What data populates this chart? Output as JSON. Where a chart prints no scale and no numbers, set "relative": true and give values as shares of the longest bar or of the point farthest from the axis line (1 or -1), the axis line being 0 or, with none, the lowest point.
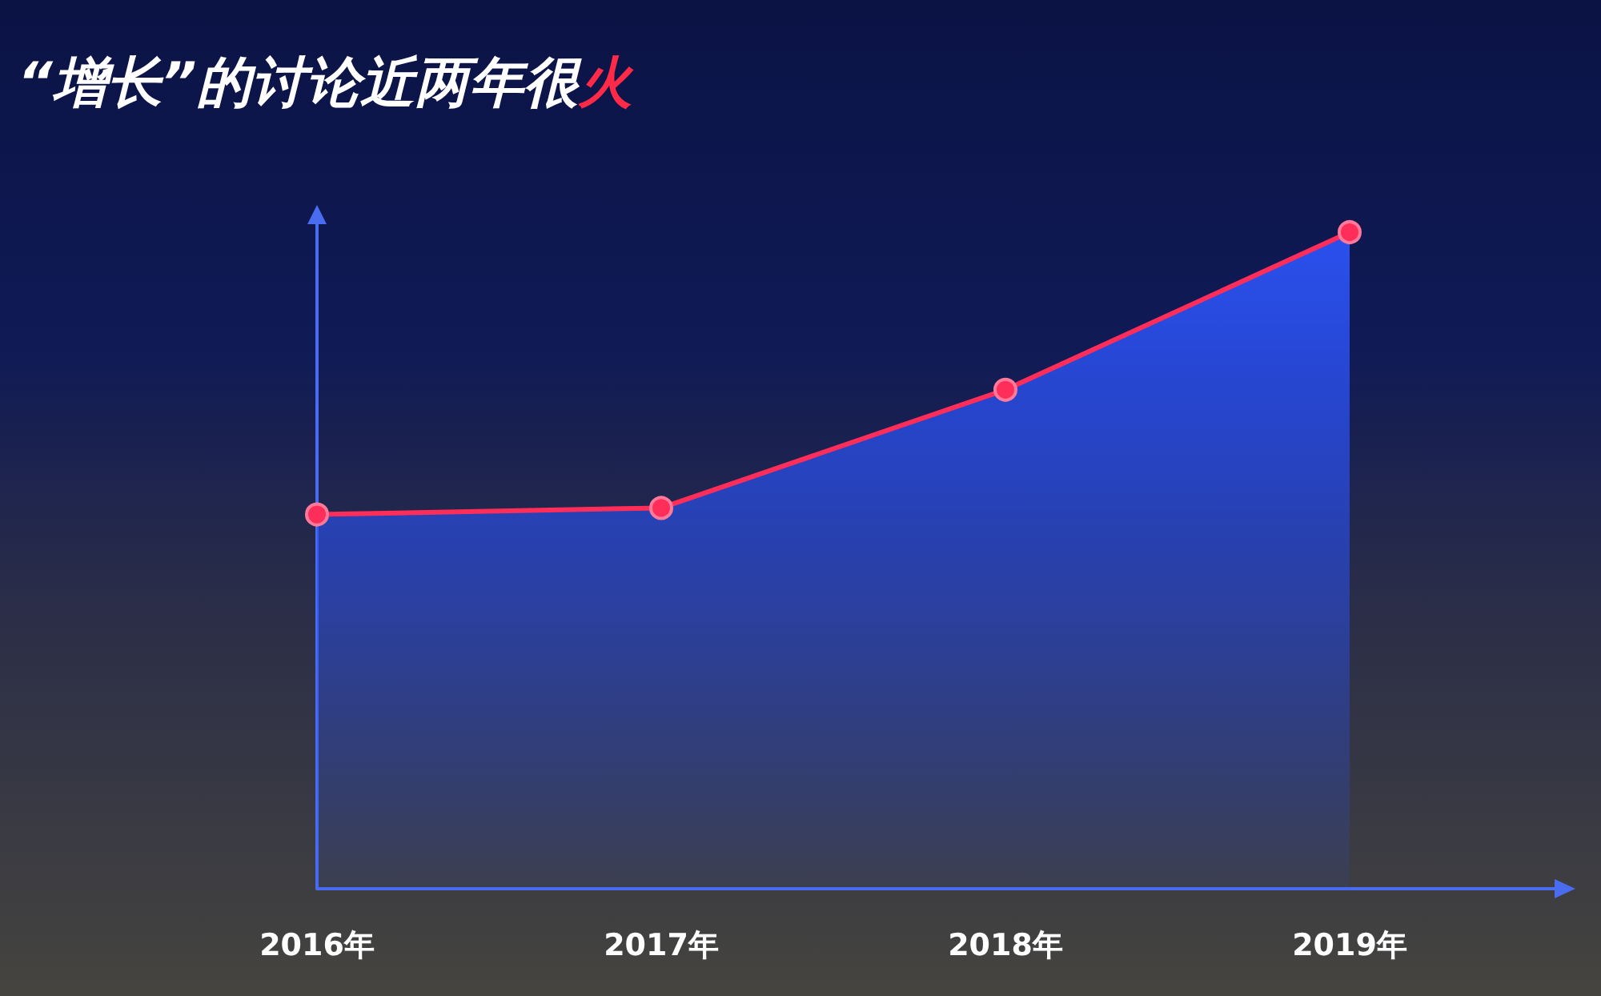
{
  "chart_data": {
    "type": "area",
    "title": "“增长”的讨论近两年很火",
    "categories": [
      "2016年",
      "2017年",
      "2018年",
      "2019年"
    ],
    "series": [
      {
        "color": "#2b50ee",
        "values": [
          0.57,
          0.58,
          0.76,
          1
        ]
      }
    ],
    "relative": true,
    "marker": "circle"
  }
}
